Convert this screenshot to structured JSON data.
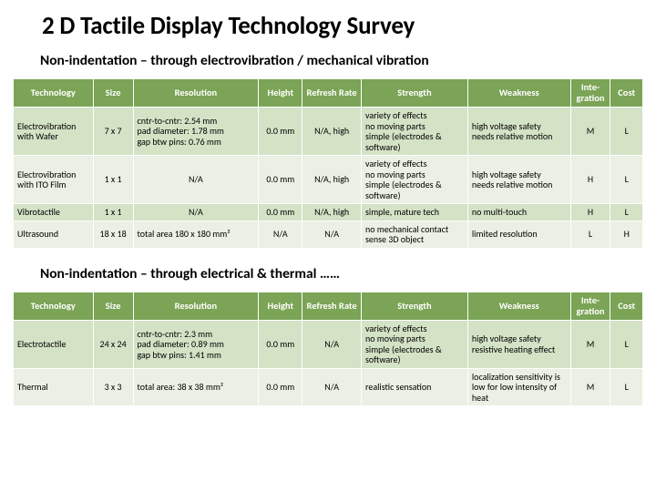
{
  "colors": {
    "header_bg": "#7ba456",
    "header_text": "#ffffff",
    "row_a": "#d4e2c6",
    "row_b": "#eaf0e3",
    "border": "#ffffff",
    "page_bg": "#ffffff",
    "text": "#000000"
  },
  "title": "2 D Tactile Display Technology Survey",
  "section1": {
    "heading": "Non-indentation – through electrovibration / mechanical vibration",
    "columns": [
      "Technology",
      "Size",
      "Resolution",
      "Height",
      "Refresh Rate",
      "Strength",
      "Weakness",
      "Inte-\ngration",
      "Cost"
    ],
    "rows": [
      {
        "tech": "Electrovibration with Wafer",
        "size": "7 x 7",
        "res": "cntr-to-cntr: 2.54 mm\npad diameter: 1.78 mm\ngap btw pins: 0.76 mm",
        "height": "0.0 mm",
        "refresh": "N/A, high",
        "strength": "variety of effects\nno moving parts\nsimple (electrodes & software)",
        "weak": "high voltage safety\nneeds relative motion",
        "int": "M",
        "cost": "L"
      },
      {
        "tech": "Electrovibration with ITO Film",
        "size": "1 x 1",
        "res": "N/A",
        "height": "0.0 mm",
        "refresh": "N/A, high",
        "strength": "variety of effects\nno moving parts\nsimple (electrodes & software)",
        "weak": "high voltage safety\nneeds relative motion",
        "int": "H",
        "cost": "L"
      },
      {
        "tech": "Vibrotactile",
        "size": "1 x 1",
        "res": "N/A",
        "height": "0.0 mm",
        "refresh": "N/A, high",
        "strength": "simple, mature tech",
        "weak": "no multi-touch",
        "int": "H",
        "cost": "L"
      },
      {
        "tech": "Ultrasound",
        "size": "18 x 18",
        "res": "total area 180 x 180 mm²",
        "height": "N/A",
        "refresh": "N/A",
        "strength": "no mechanical contact\nsense 3D object",
        "weak": "limited resolution",
        "int": "L",
        "cost": "H"
      }
    ]
  },
  "section2": {
    "heading": "Non-indentation – through electrical & thermal ……",
    "columns": [
      "Technology",
      "Size",
      "Resolution",
      "Height",
      "Refresh Rate",
      "Strength",
      "Weakness",
      "Inte-\ngration",
      "Cost"
    ],
    "rows": [
      {
        "tech": "Electrotactile",
        "size": "24 x 24",
        "res": "cntr-to-cntr: 2.3 mm\npad diameter: 0.89 mm\ngap btw pins: 1.41 mm",
        "height": "0.0 mm",
        "refresh": "N/A",
        "strength": "variety of effects\nno moving parts\nsimple (electrodes & software)",
        "weak": "high voltage safety\nresistive heating effect",
        "int": "M",
        "cost": "L"
      },
      {
        "tech": "Thermal",
        "size": "3 x 3",
        "res": "total area: 38 x 38 mm²",
        "height": "0.0 mm",
        "refresh": "N/A",
        "strength": "realistic sensation",
        "weak": "localization sensitivity is low for low intensity of heat",
        "int": "M",
        "cost": "L"
      }
    ]
  }
}
